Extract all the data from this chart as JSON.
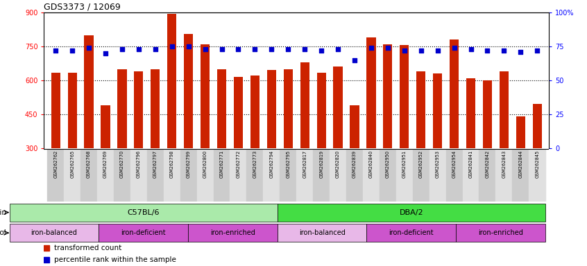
{
  "title": "GDS3373 / 12069",
  "samples": [
    "GSM262762",
    "GSM262765",
    "GSM262768",
    "GSM262769",
    "GSM262770",
    "GSM262796",
    "GSM262797",
    "GSM262798",
    "GSM262799",
    "GSM262800",
    "GSM262771",
    "GSM262772",
    "GSM262773",
    "GSM262794",
    "GSM262795",
    "GSM262817",
    "GSM262819",
    "GSM262820",
    "GSM262839",
    "GSM262840",
    "GSM262950",
    "GSM262951",
    "GSM262952",
    "GSM262953",
    "GSM262954",
    "GSM262841",
    "GSM262842",
    "GSM262843",
    "GSM262844",
    "GSM262845"
  ],
  "bar_values": [
    635,
    635,
    800,
    490,
    650,
    640,
    650,
    895,
    805,
    760,
    650,
    615,
    620,
    645,
    650,
    680,
    635,
    660,
    490,
    790,
    760,
    755,
    640,
    630,
    780,
    610,
    600,
    640,
    440,
    495
  ],
  "percentile_values": [
    72,
    72,
    74,
    70,
    73,
    73,
    73,
    75,
    75,
    73,
    73,
    73,
    73,
    73,
    73,
    73,
    72,
    73,
    65,
    74,
    74,
    72,
    72,
    72,
    74,
    73,
    72,
    72,
    71,
    72
  ],
  "ylim_left": [
    300,
    900
  ],
  "ylim_right": [
    0,
    100
  ],
  "yticks_left": [
    300,
    450,
    600,
    750,
    900
  ],
  "yticks_right": [
    0,
    25,
    50,
    75,
    100
  ],
  "bar_color": "#cc2200",
  "dot_color": "#0000cc",
  "strain_groups": [
    {
      "label": "C57BL/6",
      "start": 0,
      "end": 15,
      "color": "#aaeaaa"
    },
    {
      "label": "DBA/2",
      "start": 15,
      "end": 30,
      "color": "#44dd44"
    }
  ],
  "protocol_groups": [
    {
      "label": "iron-balanced",
      "start": 0,
      "end": 5,
      "color": "#e8b8e8"
    },
    {
      "label": "iron-deficient",
      "start": 5,
      "end": 10,
      "color": "#cc55cc"
    },
    {
      "label": "iron-enriched",
      "start": 10,
      "end": 15,
      "color": "#cc55cc"
    },
    {
      "label": "iron-balanced",
      "start": 15,
      "end": 20,
      "color": "#e8b8e8"
    },
    {
      "label": "iron-deficient",
      "start": 20,
      "end": 25,
      "color": "#cc55cc"
    },
    {
      "label": "iron-enriched",
      "start": 25,
      "end": 30,
      "color": "#cc55cc"
    }
  ],
  "bg_color": "#ffffff",
  "fig_width": 8.46,
  "fig_height": 3.84,
  "dpi": 100
}
